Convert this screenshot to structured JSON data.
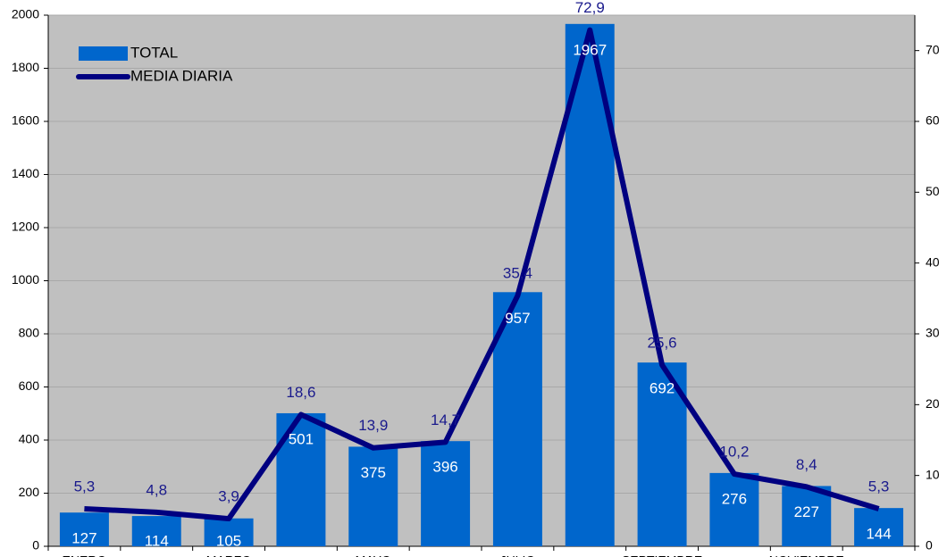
{
  "chart_data": {
    "type": "bar-line",
    "categories": [
      "ENERO",
      null,
      "MARZO",
      null,
      "MAYO",
      null,
      "JULIO",
      null,
      "SEPTIEMBRE",
      null,
      "NOVIEMBRE",
      null
    ],
    "series": [
      {
        "name": "TOTAL",
        "type": "bar",
        "color": "#0066cc",
        "axis": "y",
        "values": [
          127,
          114,
          105,
          501,
          375,
          396,
          957,
          1967,
          692,
          276,
          227,
          144
        ]
      },
      {
        "name": "MEDIA DIARIA",
        "type": "line",
        "color": "#000080",
        "axis": "y2",
        "values": [
          5.3,
          4.8,
          3.9,
          18.6,
          13.9,
          14.7,
          35.4,
          72.9,
          25.6,
          10.2,
          8.4,
          5.3
        ],
        "value_labels": [
          "5,3",
          "4,8",
          "3,9",
          "18,6",
          "13,9",
          "14,7",
          "35,4",
          "72,9",
          "25,6",
          "10,2",
          "8,4",
          "5,3"
        ]
      }
    ],
    "ylim": [
      0,
      2000
    ],
    "yticks": [
      0,
      200,
      400,
      600,
      800,
      1000,
      1200,
      1400,
      1600,
      1800,
      2000
    ],
    "y2lim": [
      0,
      75
    ],
    "y2ticks": [
      0,
      10,
      20,
      30,
      40,
      50,
      60,
      70
    ],
    "grid": true,
    "legend": "top-left"
  }
}
